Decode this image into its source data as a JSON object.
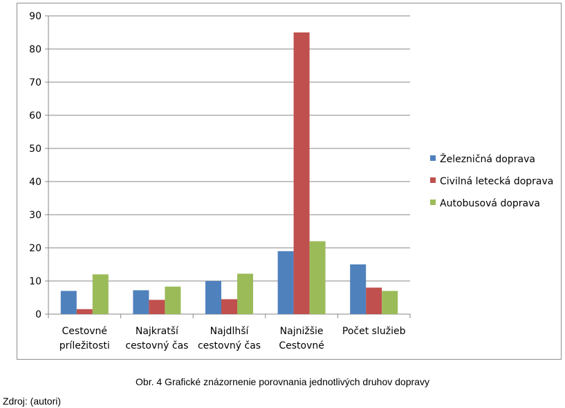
{
  "chart_data": {
    "type": "bar",
    "categories": [
      [
        "Cestovné",
        "príležitosti"
      ],
      [
        "Najkratší",
        "cestovný čas"
      ],
      [
        "Najdlhší",
        "cestovný čas"
      ],
      [
        "Najnižšie",
        "Cestovné"
      ],
      [
        "Počet služieb"
      ]
    ],
    "series": [
      {
        "name": "Železničná doprava",
        "color": "#4f81bd",
        "values": [
          7,
          7.2,
          10,
          19,
          15
        ]
      },
      {
        "name": "Civilná letecká doprava",
        "color": "#c0504d",
        "values": [
          1.5,
          4.3,
          4.5,
          85,
          8
        ]
      },
      {
        "name": "Autobusová doprava",
        "color": "#9bbb59",
        "values": [
          12,
          8.3,
          12.2,
          22,
          7
        ]
      }
    ],
    "yticks": [
      "0",
      "10",
      "20",
      "30",
      "40",
      "50",
      "60",
      "70",
      "80",
      "90"
    ],
    "ylim": [
      0,
      90
    ],
    "grid": true,
    "legend_position": "right"
  },
  "caption": "Obr. 4 Grafické znázornenie  porovnania  jednotlivých druhov  dopravy",
  "source": "Zdroj: (autori)"
}
